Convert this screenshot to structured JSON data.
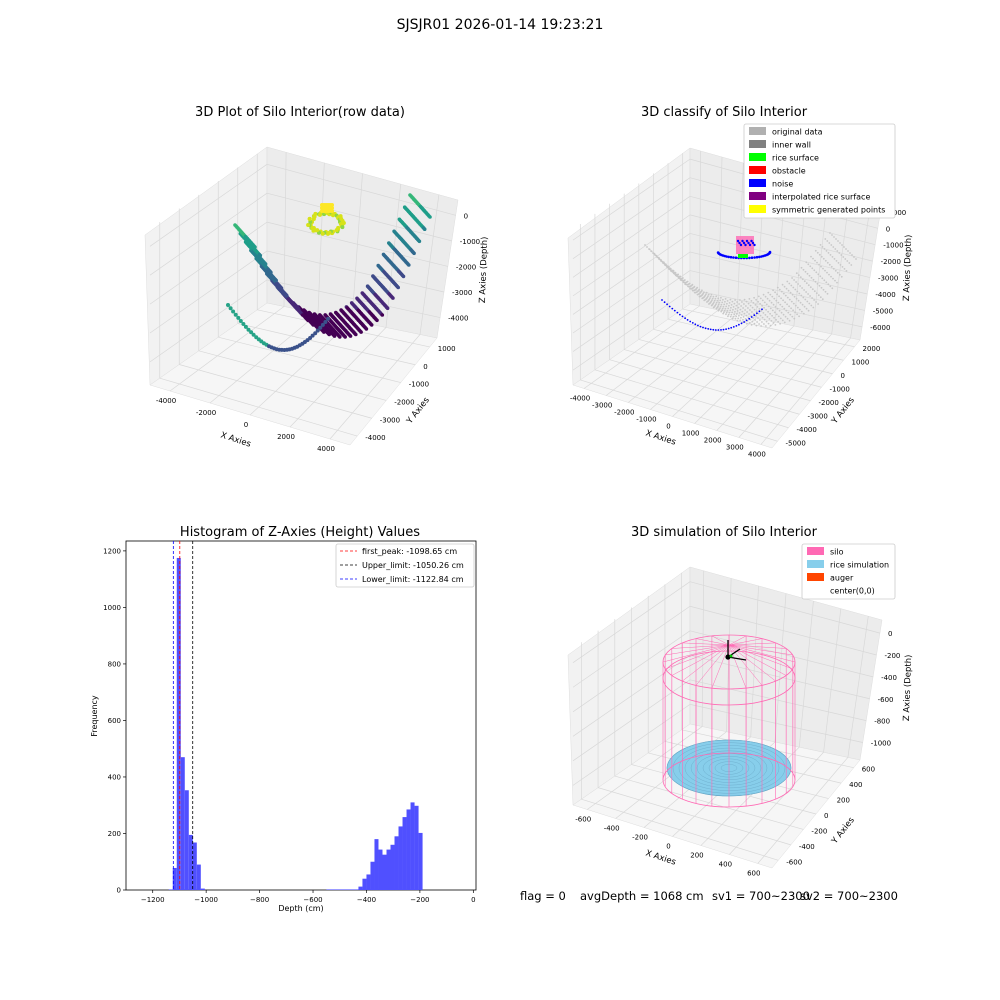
{
  "suptitle": "SJSJR01 2026-01-14 19:23:21",
  "chart_data": [
    {
      "type": "scatter3d",
      "title": "3D Plot of Silo Interior(row data)",
      "xlabel": "X Axies",
      "ylabel": "Y Axies",
      "zlabel": "Z Axies (Depth)",
      "x_ticks": [
        "-4000",
        "-2000",
        "0",
        "2000",
        "4000"
      ],
      "y_ticks": [
        "1000",
        "0",
        "-1000",
        "-2000",
        "-3000",
        "-4000"
      ],
      "z_ticks": [
        "0",
        "-1000",
        "-2000",
        "-3000",
        "-4000"
      ],
      "colormap": "viridis",
      "grid": true
    },
    {
      "type": "scatter3d",
      "title": "3D classify of Silo Interior",
      "xlabel": "X Axies",
      "ylabel": "Y Axies",
      "zlabel": "Z Axies (Depth)",
      "x_ticks": [
        "-4000",
        "-3000",
        "-2000",
        "-1000",
        "0",
        "1000",
        "2000",
        "3000",
        "4000"
      ],
      "y_ticks": [
        "2000",
        "1000",
        "0",
        "-1000",
        "-2000",
        "-3000",
        "-4000",
        "-5000"
      ],
      "z_ticks": [
        "1000",
        "0",
        "-1000",
        "-2000",
        "-3000",
        "-4000",
        "-5000",
        "-6000"
      ],
      "legend": [
        {
          "label": "original data",
          "color": "#b0b0b0"
        },
        {
          "label": "inner wall",
          "color": "#808080"
        },
        {
          "label": "rice surface",
          "color": "#00ff00"
        },
        {
          "label": "obstacle",
          "color": "#ff0000"
        },
        {
          "label": "noise",
          "color": "#0000ff"
        },
        {
          "label": "interpolated rice surface",
          "color": "#800080"
        },
        {
          "label": "symmetric generated points",
          "color": "#ffff00"
        }
      ],
      "legend_position": "top-right",
      "grid": true
    },
    {
      "type": "bar",
      "title": "Histogram of Z-Axies (Height) Values",
      "xlabel": "Depth (cm)",
      "ylabel": "Frequency",
      "xlim": [
        -1300,
        10
      ],
      "ylim": [
        0,
        1235
      ],
      "x_ticks": [
        "−1200",
        "−1000",
        "−800",
        "−600",
        "−400",
        "−200",
        "0"
      ],
      "y_ticks": [
        "0",
        "200",
        "400",
        "600",
        "800",
        "1000",
        "1200"
      ],
      "bins": [
        {
          "x0": -1140,
          "x1": -1125,
          "v": 2
        },
        {
          "x0": -1125,
          "x1": -1110,
          "v": 78
        },
        {
          "x0": -1110,
          "x1": -1095,
          "v": 1175
        },
        {
          "x0": -1095,
          "x1": -1080,
          "v": 470
        },
        {
          "x0": -1080,
          "x1": -1065,
          "v": 353
        },
        {
          "x0": -1065,
          "x1": -1050,
          "v": 195
        },
        {
          "x0": -1050,
          "x1": -1035,
          "v": 168
        },
        {
          "x0": -1035,
          "x1": -1020,
          "v": 90
        },
        {
          "x0": -1020,
          "x1": -1005,
          "v": 5
        },
        {
          "x0": -550,
          "x1": -430,
          "v": 2
        },
        {
          "x0": -430,
          "x1": -415,
          "v": 12
        },
        {
          "x0": -415,
          "x1": -400,
          "v": 40
        },
        {
          "x0": -400,
          "x1": -385,
          "v": 55
        },
        {
          "x0": -385,
          "x1": -370,
          "v": 100
        },
        {
          "x0": -370,
          "x1": -355,
          "v": 180
        },
        {
          "x0": -355,
          "x1": -340,
          "v": 143
        },
        {
          "x0": -340,
          "x1": -325,
          "v": 125
        },
        {
          "x0": -325,
          "x1": -310,
          "v": 143
        },
        {
          "x0": -310,
          "x1": -295,
          "v": 160
        },
        {
          "x0": -295,
          "x1": -280,
          "v": 190
        },
        {
          "x0": -280,
          "x1": -265,
          "v": 225
        },
        {
          "x0": -265,
          "x1": -250,
          "v": 258
        },
        {
          "x0": -250,
          "x1": -235,
          "v": 285
        },
        {
          "x0": -235,
          "x1": -220,
          "v": 310
        },
        {
          "x0": -220,
          "x1": -205,
          "v": 298
        },
        {
          "x0": -205,
          "x1": -190,
          "v": 202
        }
      ],
      "bar_color": "#5050ff",
      "vlines": [
        {
          "label": "first_peak: -1098.65 cm",
          "x": -1098.65,
          "color": "#ff0000"
        },
        {
          "label": "Upper_limit: -1050.26 cm",
          "x": -1050.26,
          "color": "#000000"
        },
        {
          "label": "Lower_limit: -1122.84 cm",
          "x": -1122.84,
          "color": "#0000ff"
        }
      ],
      "legend_position": "top-right"
    },
    {
      "type": "surface3d",
      "title": "3D simulation of Silo Interior",
      "xlabel": "X Axies",
      "ylabel": "Y Axies",
      "zlabel": "Z Axies (Depth)",
      "x_ticks": [
        "-600",
        "-400",
        "-200",
        "0",
        "200",
        "400",
        "600"
      ],
      "y_ticks": [
        "600",
        "400",
        "200",
        "0",
        "-200",
        "-400",
        "-600"
      ],
      "z_ticks": [
        "0",
        "-200",
        "-400",
        "-600",
        "-800",
        "-1000"
      ],
      "legend": [
        {
          "label": "silo",
          "color": "#ff69b4"
        },
        {
          "label": "rice simulation",
          "color": "#87ceeb"
        },
        {
          "label": "auger",
          "color": "#ff4500"
        },
        {
          "label": "center(0,0)",
          "color": ""
        }
      ],
      "legend_position": "top-right",
      "grid": true
    }
  ],
  "status": {
    "flag": "flag = 0",
    "avg_depth": "avgDepth = 1068 cm",
    "sv1": "sv1 = 700~2300",
    "sv2": "sv2 = 700~2300"
  }
}
